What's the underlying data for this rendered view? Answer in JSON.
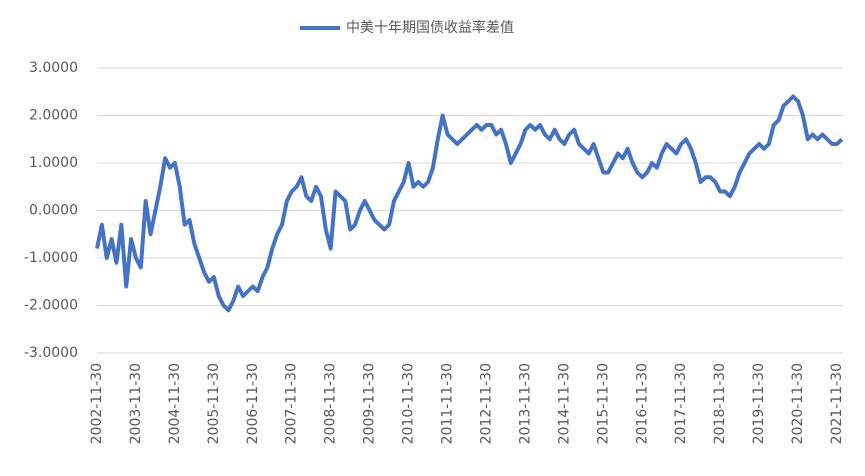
{
  "chart_data": {
    "type": "line",
    "categories": [
      "2002-11-30",
      null,
      null,
      null,
      null,
      null,
      null,
      null,
      "2003-11-30",
      null,
      null,
      null,
      null,
      null,
      null,
      null,
      "2004-11-30",
      null,
      null,
      null,
      null,
      null,
      null,
      null,
      "2005-11-30",
      null,
      null,
      null,
      null,
      null,
      null,
      null,
      "2006-11-30",
      null,
      null,
      null,
      null,
      null,
      null,
      null,
      "2007-11-30",
      null,
      null,
      null,
      null,
      null,
      null,
      null,
      "2008-11-30",
      null,
      null,
      null,
      null,
      null,
      null,
      null,
      "2009-11-30",
      null,
      null,
      null,
      null,
      null,
      null,
      null,
      "2010-11-30",
      null,
      null,
      null,
      null,
      null,
      null,
      null,
      "2011-11-30",
      null,
      null,
      null,
      null,
      null,
      null,
      null,
      "2012-11-30",
      null,
      null,
      null,
      null,
      null,
      null,
      null,
      "2013-11-30",
      null,
      null,
      null,
      null,
      null,
      null,
      null,
      "2014-11-30",
      null,
      null,
      null,
      null,
      null,
      null,
      null,
      "2015-11-30",
      null,
      null,
      null,
      null,
      null,
      null,
      null,
      "2016-11-30",
      null,
      null,
      null,
      null,
      null,
      null,
      null,
      "2017-11-30",
      null,
      null,
      null,
      null,
      null,
      null,
      null,
      "2018-11-30",
      null,
      null,
      null,
      null,
      null,
      null,
      null,
      "2019-11-30",
      null,
      null,
      null,
      null,
      null,
      null,
      null,
      "2020-11-30",
      null,
      null,
      null,
      null,
      null,
      null,
      null,
      "2021-11-30",
      null
    ],
    "series": [
      {
        "name": "中美十年期国债收益率差值",
        "color": "#4472c4",
        "values": [
          -0.8,
          -0.3,
          -1.0,
          -0.6,
          -1.1,
          -0.3,
          -1.6,
          -0.6,
          -1.0,
          -1.2,
          0.2,
          -0.5,
          0.0,
          0.5,
          1.1,
          0.9,
          1.0,
          0.5,
          -0.3,
          -0.2,
          -0.7,
          -1.0,
          -1.3,
          -1.5,
          -1.4,
          -1.8,
          -2.0,
          -2.1,
          -1.9,
          -1.6,
          -1.8,
          -1.7,
          -1.6,
          -1.7,
          -1.4,
          -1.2,
          -0.8,
          -0.5,
          -0.3,
          0.2,
          0.4,
          0.5,
          0.7,
          0.3,
          0.2,
          0.5,
          0.3,
          -0.4,
          -0.8,
          0.4,
          0.3,
          0.2,
          -0.4,
          -0.3,
          0.0,
          0.2,
          0.0,
          -0.2,
          -0.3,
          -0.4,
          -0.3,
          0.2,
          0.4,
          0.6,
          1.0,
          0.5,
          0.6,
          0.5,
          0.6,
          0.9,
          1.5,
          2.0,
          1.6,
          1.5,
          1.4,
          1.5,
          1.6,
          1.7,
          1.8,
          1.7,
          1.8,
          1.8,
          1.6,
          1.7,
          1.4,
          1.0,
          1.2,
          1.4,
          1.7,
          1.8,
          1.7,
          1.8,
          1.6,
          1.5,
          1.7,
          1.5,
          1.4,
          1.6,
          1.7,
          1.4,
          1.3,
          1.2,
          1.4,
          1.1,
          0.8,
          0.8,
          1.0,
          1.2,
          1.1,
          1.3,
          1.0,
          0.8,
          0.7,
          0.8,
          1.0,
          0.9,
          1.2,
          1.4,
          1.3,
          1.2,
          1.4,
          1.5,
          1.3,
          1.0,
          0.6,
          0.7,
          0.7,
          0.6,
          0.4,
          0.4,
          0.3,
          0.5,
          0.8,
          1.0,
          1.2,
          1.3,
          1.4,
          1.3,
          1.4,
          1.8,
          1.9,
          2.2,
          2.3,
          2.4,
          2.3,
          2.0,
          1.5,
          1.6,
          1.5,
          1.6,
          1.5,
          1.4,
          1.4,
          1.5
        ]
      }
    ],
    "ylim": [
      -3,
      3
    ],
    "yticks": [
      {
        "value": -3,
        "label": "-3.0000"
      },
      {
        "value": -2,
        "label": "-2.0000"
      },
      {
        "value": -1,
        "label": "-1.0000"
      },
      {
        "value": 0,
        "label": "0.0000"
      },
      {
        "value": 1,
        "label": "1.0000"
      },
      {
        "value": 2,
        "label": "2.0000"
      },
      {
        "value": 3,
        "label": "3.0000"
      }
    ],
    "grid": true,
    "legend": "top"
  }
}
